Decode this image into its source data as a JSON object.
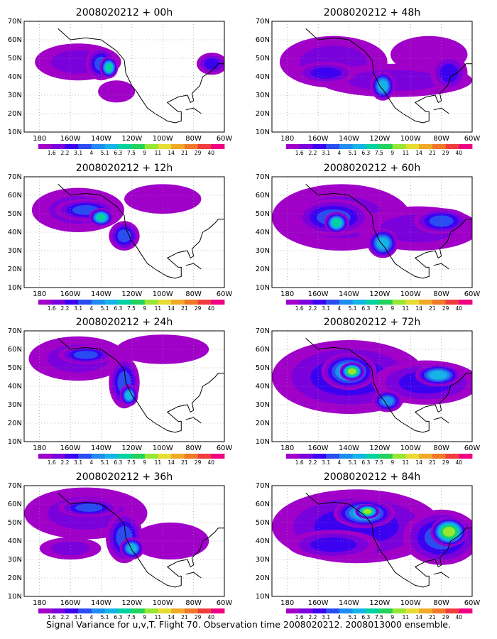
{
  "caption": "Signal Variance for u,v,T. Flight 70. Observation time 2008020212. 2008013000 ensemble.",
  "colorbar": {
    "labels": [
      "1.6",
      "2.2",
      "3.1",
      "4",
      "5.1",
      "6.3",
      "7.5",
      "9",
      "11",
      "14",
      "21",
      "29",
      "40"
    ],
    "colors": [
      "#a000c8",
      "#7a00dc",
      "#3c00f0",
      "#2a4cf0",
      "#1e8cf0",
      "#14b4e6",
      "#00d2a0",
      "#22d25a",
      "#96e632",
      "#e6dc32",
      "#f0aa28",
      "#f07828",
      "#f03c3c",
      "#f00082"
    ]
  },
  "chart_data": [
    {
      "type": "heatmap",
      "title": "2008020212 + 00h",
      "xticks": [
        "180",
        "160W",
        "140W",
        "120W",
        "100W",
        "80W",
        "60W"
      ],
      "yticks": [
        "70N",
        "60N",
        "50N",
        "40N",
        "30N",
        "20N",
        "10N"
      ],
      "xlim": [
        -190,
        -60
      ],
      "ylim": [
        10,
        70
      ],
      "blobs": [
        {
          "lon": -155,
          "lat": 48,
          "rx": 28,
          "ry": 10,
          "level": 1
        },
        {
          "lon": -140,
          "lat": 47,
          "rx": 10,
          "ry": 9,
          "level": 3
        },
        {
          "lon": -135,
          "lat": 45,
          "rx": 6,
          "ry": 6,
          "level": 6
        },
        {
          "lon": -68,
          "lat": 47,
          "rx": 10,
          "ry": 6,
          "level": 2
        },
        {
          "lon": -130,
          "lat": 32,
          "rx": 12,
          "ry": 6,
          "level": 0
        }
      ]
    },
    {
      "type": "heatmap",
      "title": "2008020212 + 48h",
      "xticks": [
        "180",
        "160W",
        "140W",
        "120W",
        "100W",
        "80W",
        "60W"
      ],
      "yticks": [
        "70N",
        "60N",
        "50N",
        "40N",
        "30N",
        "20N",
        "10N"
      ],
      "xlim": [
        -190,
        -60
      ],
      "ylim": [
        10,
        70
      ],
      "blobs": [
        {
          "lon": -150,
          "lat": 48,
          "rx": 35,
          "ry": 14,
          "level": 1
        },
        {
          "lon": -155,
          "lat": 42,
          "rx": 20,
          "ry": 6,
          "level": 2
        },
        {
          "lon": -118,
          "lat": 35,
          "rx": 8,
          "ry": 8,
          "level": 5
        },
        {
          "lon": -110,
          "lat": 38,
          "rx": 50,
          "ry": 9,
          "level": 1
        },
        {
          "lon": -75,
          "lat": 42,
          "rx": 12,
          "ry": 10,
          "level": 2
        },
        {
          "lon": -88,
          "lat": 52,
          "rx": 25,
          "ry": 10,
          "level": 0
        }
      ]
    },
    {
      "type": "heatmap",
      "title": "2008020212 + 12h",
      "xticks": [
        "180",
        "160W",
        "140W",
        "120W",
        "100W",
        "80W",
        "60W"
      ],
      "yticks": [
        "70N",
        "60N",
        "50N",
        "40N",
        "30N",
        "20N",
        "10N"
      ],
      "xlim": [
        -190,
        -60
      ],
      "ylim": [
        10,
        70
      ],
      "blobs": [
        {
          "lon": -155,
          "lat": 52,
          "rx": 30,
          "ry": 12,
          "level": 1
        },
        {
          "lon": -150,
          "lat": 52,
          "rx": 20,
          "ry": 6,
          "level": 3
        },
        {
          "lon": -140,
          "lat": 48,
          "rx": 8,
          "ry": 5,
          "level": 6
        },
        {
          "lon": -125,
          "lat": 38,
          "rx": 10,
          "ry": 8,
          "level": 3
        },
        {
          "lon": -100,
          "lat": 58,
          "rx": 25,
          "ry": 8,
          "level": 0
        }
      ]
    },
    {
      "type": "heatmap",
      "title": "2008020212 + 60h",
      "xticks": [
        "180",
        "160W",
        "140W",
        "120W",
        "100W",
        "80W",
        "60W"
      ],
      "yticks": [
        "70N",
        "60N",
        "50N",
        "40N",
        "30N",
        "20N",
        "10N"
      ],
      "xlim": [
        -190,
        -60
      ],
      "ylim": [
        10,
        70
      ],
      "blobs": [
        {
          "lon": -145,
          "lat": 48,
          "rx": 45,
          "ry": 18,
          "level": 1
        },
        {
          "lon": -150,
          "lat": 48,
          "rx": 25,
          "ry": 10,
          "level": 3
        },
        {
          "lon": -148,
          "lat": 45,
          "rx": 8,
          "ry": 6,
          "level": 6
        },
        {
          "lon": -118,
          "lat": 34,
          "rx": 10,
          "ry": 8,
          "level": 5
        },
        {
          "lon": -95,
          "lat": 42,
          "rx": 40,
          "ry": 12,
          "level": 1
        },
        {
          "lon": -80,
          "lat": 46,
          "rx": 18,
          "ry": 7,
          "level": 3
        }
      ]
    },
    {
      "type": "heatmap",
      "title": "2008020212 + 24h",
      "xticks": [
        "180",
        "160W",
        "140W",
        "120W",
        "100W",
        "80W",
        "60W"
      ],
      "yticks": [
        "70N",
        "60N",
        "50N",
        "40N",
        "30N",
        "20N",
        "10N"
      ],
      "xlim": [
        -190,
        -60
      ],
      "ylim": [
        10,
        70
      ],
      "blobs": [
        {
          "lon": -155,
          "lat": 55,
          "rx": 32,
          "ry": 12,
          "level": 1
        },
        {
          "lon": -150,
          "lat": 57,
          "rx": 18,
          "ry": 5,
          "level": 3
        },
        {
          "lon": -125,
          "lat": 42,
          "rx": 10,
          "ry": 14,
          "level": 3
        },
        {
          "lon": -122,
          "lat": 35,
          "rx": 6,
          "ry": 6,
          "level": 5
        },
        {
          "lon": -100,
          "lat": 60,
          "rx": 30,
          "ry": 8,
          "level": 0
        }
      ]
    },
    {
      "type": "heatmap",
      "title": "2008020212 + 72h",
      "xticks": [
        "180",
        "160W",
        "140W",
        "120W",
        "100W",
        "80W",
        "60W"
      ],
      "yticks": [
        "70N",
        "60N",
        "50N",
        "40N",
        "30N",
        "20N",
        "10N"
      ],
      "xlim": [
        -190,
        -60
      ],
      "ylim": [
        10,
        70
      ],
      "blobs": [
        {
          "lon": -140,
          "lat": 45,
          "rx": 50,
          "ry": 20,
          "level": 2
        },
        {
          "lon": -140,
          "lat": 48,
          "rx": 18,
          "ry": 10,
          "level": 5
        },
        {
          "lon": -138,
          "lat": 48,
          "rx": 8,
          "ry": 5,
          "level": 8
        },
        {
          "lon": -90,
          "lat": 42,
          "rx": 35,
          "ry": 12,
          "level": 2
        },
        {
          "lon": -82,
          "lat": 46,
          "rx": 15,
          "ry": 6,
          "level": 5
        },
        {
          "lon": -115,
          "lat": 32,
          "rx": 10,
          "ry": 6,
          "level": 4
        }
      ]
    },
    {
      "type": "heatmap",
      "title": "2008020212 + 36h",
      "xticks": [
        "180",
        "160W",
        "140W",
        "120W",
        "100W",
        "80W",
        "60W"
      ],
      "yticks": [
        "70N",
        "60N",
        "50N",
        "40N",
        "30N",
        "20N",
        "10N"
      ],
      "xlim": [
        -190,
        -60
      ],
      "ylim": [
        10,
        70
      ],
      "blobs": [
        {
          "lon": -150,
          "lat": 55,
          "rx": 40,
          "ry": 14,
          "level": 1
        },
        {
          "lon": -148,
          "lat": 58,
          "rx": 20,
          "ry": 5,
          "level": 3
        },
        {
          "lon": -125,
          "lat": 42,
          "rx": 12,
          "ry": 14,
          "level": 3
        },
        {
          "lon": -120,
          "lat": 36,
          "rx": 8,
          "ry": 6,
          "level": 5
        },
        {
          "lon": -160,
          "lat": 36,
          "rx": 20,
          "ry": 6,
          "level": 1
        },
        {
          "lon": -95,
          "lat": 40,
          "rx": 25,
          "ry": 10,
          "level": 0
        }
      ]
    },
    {
      "type": "heatmap",
      "title": "2008020212 + 84h",
      "xticks": [
        "180",
        "160W",
        "140W",
        "120W",
        "100W",
        "80W",
        "60W"
      ],
      "yticks": [
        "70N",
        "60N",
        "50N",
        "40N",
        "30N",
        "20N",
        "10N"
      ],
      "xlim": [
        -190,
        -60
      ],
      "ylim": [
        10,
        70
      ],
      "blobs": [
        {
          "lon": -135,
          "lat": 48,
          "rx": 55,
          "ry": 20,
          "level": 2
        },
        {
          "lon": -130,
          "lat": 55,
          "rx": 20,
          "ry": 8,
          "level": 5
        },
        {
          "lon": -128,
          "lat": 56,
          "rx": 8,
          "ry": 4,
          "level": 8
        },
        {
          "lon": -80,
          "lat": 42,
          "rx": 25,
          "ry": 15,
          "level": 3
        },
        {
          "lon": -75,
          "lat": 45,
          "rx": 12,
          "ry": 8,
          "level": 8
        },
        {
          "lon": -150,
          "lat": 38,
          "rx": 30,
          "ry": 8,
          "level": 2
        }
      ]
    }
  ]
}
